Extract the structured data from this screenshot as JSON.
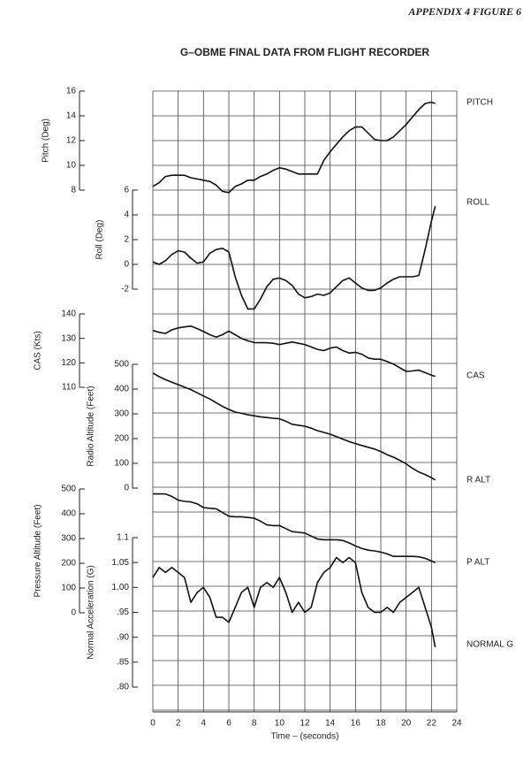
{
  "header": "APPENDIX 4 FIGURE 6",
  "chart_data": [
    {
      "type": "line",
      "title": "G–OBME FINAL DATA FROM FLIGHT RECORDER",
      "name": "PITCH",
      "ylabel": "Pitch (Deg)",
      "color": "#111111",
      "ylim": [
        8,
        16
      ],
      "yticks": [
        8,
        10,
        12,
        14,
        16
      ],
      "x": [
        0,
        0.5,
        1,
        1.5,
        2,
        2.5,
        3,
        3.5,
        4,
        4.5,
        5,
        5.5,
        6,
        6.5,
        7,
        7.5,
        8,
        8.5,
        9,
        9.5,
        10,
        10.5,
        11,
        11.5,
        12,
        12.5,
        13,
        13.5,
        14,
        14.5,
        15,
        15.5,
        16,
        16.5,
        17,
        17.5,
        18,
        18.5,
        19,
        19.5,
        20,
        20.5,
        21,
        21.5,
        22,
        22.3
      ],
      "values": [
        8.3,
        8.6,
        9.1,
        9.2,
        9.2,
        9.2,
        9.0,
        8.9,
        8.8,
        8.7,
        8.4,
        7.9,
        7.8,
        8.3,
        8.5,
        8.8,
        8.8,
        9.1,
        9.3,
        9.6,
        9.8,
        9.7,
        9.5,
        9.3,
        9.3,
        9.3,
        9.3,
        10.4,
        11.1,
        11.7,
        12.3,
        12.8,
        13.1,
        13.1,
        12.6,
        12.1,
        12.0,
        12.0,
        12.3,
        12.8,
        13.3,
        13.9,
        14.5,
        15.0,
        15.1,
        15.0
      ]
    },
    {
      "type": "line",
      "name": "ROLL",
      "ylabel": "Roll (Deg)",
      "color": "#111111",
      "ylim": [
        -2,
        6
      ],
      "yticks": [
        -2,
        0,
        2,
        4,
        6
      ],
      "x": [
        0,
        0.5,
        1,
        1.5,
        2,
        2.5,
        3,
        3.5,
        4,
        4.5,
        5,
        5.5,
        6,
        6.5,
        7,
        7.5,
        8,
        8.5,
        9,
        9.5,
        10,
        10.5,
        11,
        11.5,
        12,
        12.5,
        13,
        13.5,
        14,
        14.5,
        15,
        15.5,
        16,
        16.5,
        17,
        17.5,
        18,
        18.5,
        19,
        19.5,
        20,
        20.5,
        21,
        21.5,
        22,
        22.3
      ],
      "values": [
        0.2,
        0.0,
        0.3,
        0.8,
        1.1,
        1.0,
        0.5,
        0.1,
        0.2,
        0.9,
        1.2,
        1.3,
        1.0,
        -1.0,
        -2.5,
        -3.6,
        -3.6,
        -2.8,
        -1.8,
        -1.2,
        -1.1,
        -1.3,
        -1.7,
        -2.4,
        -2.7,
        -2.6,
        -2.4,
        -2.5,
        -2.3,
        -1.8,
        -1.3,
        -1.1,
        -1.5,
        -1.9,
        -2.1,
        -2.1,
        -1.9,
        -1.5,
        -1.2,
        -1.0,
        -1.0,
        -1.0,
        -0.9,
        1.2,
        3.5,
        4.7
      ]
    },
    {
      "type": "line",
      "name": "CAS",
      "ylabel": "CAS (Kts)",
      "color": "#111111",
      "ylim": [
        110,
        140
      ],
      "yticks": [
        110,
        120,
        130,
        140
      ],
      "x": [
        0,
        0.5,
        1,
        1.5,
        2,
        2.5,
        3,
        3.5,
        4,
        4.5,
        5,
        5.5,
        6,
        6.5,
        7,
        7.5,
        8,
        8.5,
        9,
        9.5,
        10,
        10.5,
        11,
        11.5,
        12,
        12.5,
        13,
        13.5,
        14,
        14.5,
        15,
        15.5,
        16,
        16.5,
        17,
        17.5,
        18,
        18.5,
        19,
        19.5,
        20,
        20.5,
        21,
        21.5,
        22,
        22.3
      ],
      "values": [
        133.2,
        132.5,
        132,
        133.5,
        134.3,
        134.7,
        135,
        134,
        132.8,
        131.5,
        130.5,
        131.5,
        133,
        131.5,
        130,
        129,
        128.3,
        128.2,
        128.2,
        128,
        127.5,
        128,
        128.5,
        128,
        127.5,
        126.5,
        125.5,
        125,
        126,
        126.5,
        125,
        124,
        124.3,
        123.5,
        122,
        121.5,
        121.5,
        120.5,
        119.5,
        118,
        116.5,
        116.7,
        117,
        116,
        115,
        114.5
      ]
    },
    {
      "type": "line",
      "name": "R ALT",
      "ylabel": "Radio Altitude (Feet)",
      "color": "#111111",
      "ylim": [
        0,
        500
      ],
      "yticks": [
        0,
        100,
        200,
        300,
        400,
        500
      ],
      "x": [
        0,
        0.5,
        1,
        1.5,
        2,
        2.5,
        3,
        3.5,
        4,
        4.5,
        5,
        5.5,
        6,
        6.5,
        7,
        7.5,
        8,
        8.5,
        9,
        9.5,
        10,
        10.5,
        11,
        11.5,
        12,
        12.5,
        13,
        13.5,
        14,
        14.5,
        15,
        15.5,
        16,
        16.5,
        17,
        17.5,
        18,
        18.5,
        19,
        19.5,
        20,
        20.5,
        21,
        21.5,
        22,
        22.3
      ],
      "values": [
        465,
        450,
        438,
        428,
        418,
        408,
        398,
        385,
        372,
        360,
        345,
        330,
        318,
        307,
        302,
        296,
        292,
        288,
        285,
        282,
        280,
        270,
        258,
        254,
        250,
        242,
        232,
        225,
        218,
        208,
        198,
        188,
        180,
        172,
        165,
        158,
        148,
        135,
        125,
        112,
        98,
        80,
        65,
        55,
        42,
        33
      ]
    },
    {
      "type": "line",
      "name": "P ALT",
      "ylabel": "Pressure Altitude (Feet)",
      "color": "#111111",
      "ylim": [
        0,
        500
      ],
      "yticks": [
        0,
        100,
        200,
        300,
        400,
        500
      ],
      "x": [
        0,
        0.5,
        1,
        1.5,
        2,
        2.5,
        3,
        3.5,
        4,
        4.5,
        5,
        5.5,
        6,
        6.5,
        7,
        7.5,
        8,
        8.5,
        9,
        9.5,
        10,
        10.5,
        11,
        11.5,
        12,
        12.5,
        13,
        13.5,
        14,
        14.5,
        15,
        15.5,
        16,
        16.5,
        17,
        17.5,
        18,
        18.5,
        19,
        19.5,
        20,
        20.5,
        21,
        21.5,
        22,
        22.3
      ],
      "values": [
        480,
        480,
        480,
        470,
        455,
        450,
        448,
        440,
        425,
        422,
        420,
        405,
        390,
        388,
        388,
        385,
        382,
        370,
        355,
        352,
        352,
        340,
        328,
        325,
        322,
        310,
        298,
        295,
        295,
        295,
        292,
        282,
        270,
        260,
        253,
        250,
        245,
        238,
        228,
        228,
        228,
        228,
        226,
        220,
        210,
        202
      ]
    },
    {
      "type": "line",
      "name": "NORMAL G",
      "ylabel": "Normal Acceleration (G)",
      "xlabel": "Time – (seconds)",
      "color": "#111111",
      "ylim": [
        0.8,
        1.1
      ],
      "yticks": [
        {
          "value": 0.8,
          "label": ".80"
        },
        {
          "value": 0.85,
          "label": ".85"
        },
        {
          "value": 0.9,
          "label": ".90"
        },
        {
          "value": 0.95,
          "label": ".95"
        },
        {
          "value": 1,
          "label": "1.00"
        },
        {
          "value": 1.05,
          "label": "1.05"
        },
        1.1
      ],
      "xlim": [
        0,
        24
      ],
      "xticks": [
        0,
        2,
        4,
        6,
        8,
        10,
        12,
        14,
        16,
        18,
        20,
        22,
        24
      ],
      "x": [
        0,
        0.5,
        1,
        1.5,
        2,
        2.5,
        3,
        3.5,
        4,
        4.5,
        5,
        5.5,
        6,
        6.5,
        7,
        7.5,
        8,
        8.5,
        9,
        9.5,
        10,
        10.5,
        11,
        11.5,
        12,
        12.5,
        13,
        13.5,
        14,
        14.5,
        15,
        15.5,
        16,
        16.5,
        17,
        17.5,
        18,
        18.5,
        19,
        19.5,
        20,
        20.5,
        21,
        21.5,
        22,
        22.3
      ],
      "values": [
        1.02,
        1.04,
        1.03,
        1.04,
        1.03,
        1.02,
        0.97,
        0.99,
        1.0,
        0.98,
        0.94,
        0.94,
        0.93,
        0.96,
        0.99,
        1.0,
        0.96,
        1.0,
        1.01,
        1.0,
        1.02,
        0.99,
        0.95,
        0.97,
        0.95,
        0.96,
        1.01,
        1.03,
        1.04,
        1.06,
        1.05,
        1.06,
        1.05,
        0.99,
        0.96,
        0.95,
        0.95,
        0.96,
        0.95,
        0.97,
        0.98,
        0.99,
        1.0,
        0.96,
        0.92,
        0.88
      ]
    }
  ]
}
